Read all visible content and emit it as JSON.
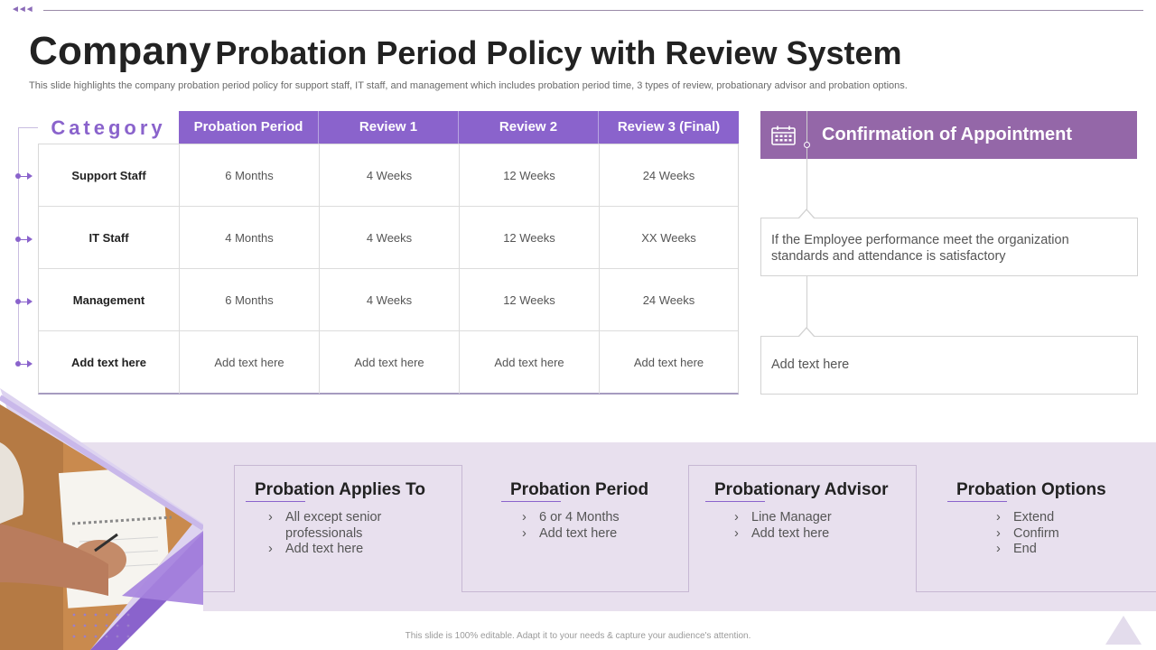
{
  "nav": {
    "arrows": "◄◄◄"
  },
  "title": {
    "big": "Company",
    "rest": "Probation Period Policy with Review System"
  },
  "subtitle": "This slide highlights the company probation period policy for support staff, IT staff, and management which includes probation period time, 3 types of review, probationary advisor and probation options.",
  "table": {
    "category_header": "Category",
    "columns": [
      "Probation Period",
      "Review 1",
      "Review 2",
      "Review 3 (Final)"
    ],
    "rows": [
      {
        "category": "Support Staff",
        "cells": [
          "6 Months",
          "4 Weeks",
          "12 Weeks",
          "24 Weeks"
        ]
      },
      {
        "category": "IT Staff",
        "cells": [
          "4 Months",
          "4 Weeks",
          "12 Weeks",
          "XX  Weeks"
        ]
      },
      {
        "category": "Management",
        "cells": [
          "6 Months",
          "4 Weeks",
          "12 Weeks",
          "24 Weeks"
        ]
      },
      {
        "category": "Add text here",
        "cells": [
          "Add text here",
          "Add text here",
          "Add text here",
          "Add text here"
        ]
      }
    ]
  },
  "confirmation": {
    "icon": "calendar-icon",
    "title": "Confirmation of Appointment",
    "box1": "If the Employee performance meet the organization standards and attendance is satisfactory",
    "box2": "Add text here"
  },
  "cards": [
    {
      "title": "Probation Applies To",
      "items": [
        "All except senior professionals",
        "Add text here"
      ]
    },
    {
      "title": "Probation Period",
      "items": [
        "6 or 4 Months",
        "Add text here"
      ]
    },
    {
      "title": "Probationary Advisor",
      "items": [
        "Line Manager",
        "Add text here"
      ]
    },
    {
      "title": "Probation Options",
      "items": [
        "Extend",
        "Confirm",
        "End"
      ]
    }
  ],
  "footer": "This slide is 100% editable. Adapt it to your needs & capture your audience's attention.",
  "colors": {
    "accent": "#8a63cc",
    "header_bar": "#9467a8",
    "band": "#e8e0ee"
  }
}
